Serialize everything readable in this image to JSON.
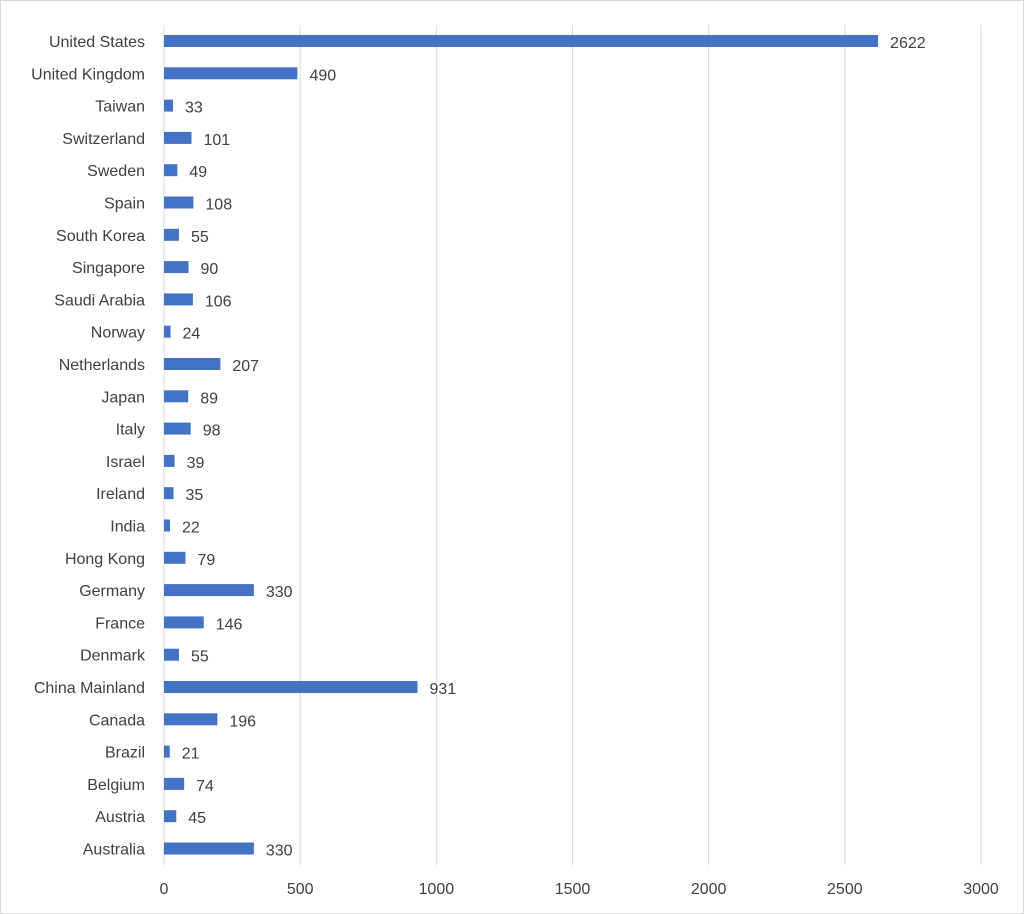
{
  "chart_data": {
    "type": "bar",
    "orientation": "horizontal",
    "title": "",
    "xlabel": "",
    "ylabel": "",
    "categories": [
      "United States",
      "United Kingdom",
      "Taiwan",
      "Switzerland",
      "Sweden",
      "Spain",
      "South Korea",
      "Singapore",
      "Saudi Arabia",
      "Norway",
      "Netherlands",
      "Japan",
      "Italy",
      "Israel",
      "Ireland",
      "India",
      "Hong Kong",
      "Germany",
      "France",
      "Denmark",
      "China Mainland",
      "Canada",
      "Brazil",
      "Belgium",
      "Austria",
      "Australia"
    ],
    "values": [
      2622,
      490,
      33,
      101,
      49,
      108,
      55,
      90,
      106,
      24,
      207,
      89,
      98,
      39,
      35,
      22,
      79,
      330,
      146,
      55,
      931,
      196,
      21,
      74,
      45,
      330
    ],
    "xlim": [
      0,
      3000
    ],
    "xticks": [
      "0",
      "500",
      "1000",
      "1500",
      "2000",
      "2500",
      "3000"
    ],
    "grid": "vertical",
    "legend": "none",
    "data_labels": true,
    "bar_color": "#4472C4",
    "gridline_color": "#D9D9D9",
    "text_color": "#404040"
  }
}
